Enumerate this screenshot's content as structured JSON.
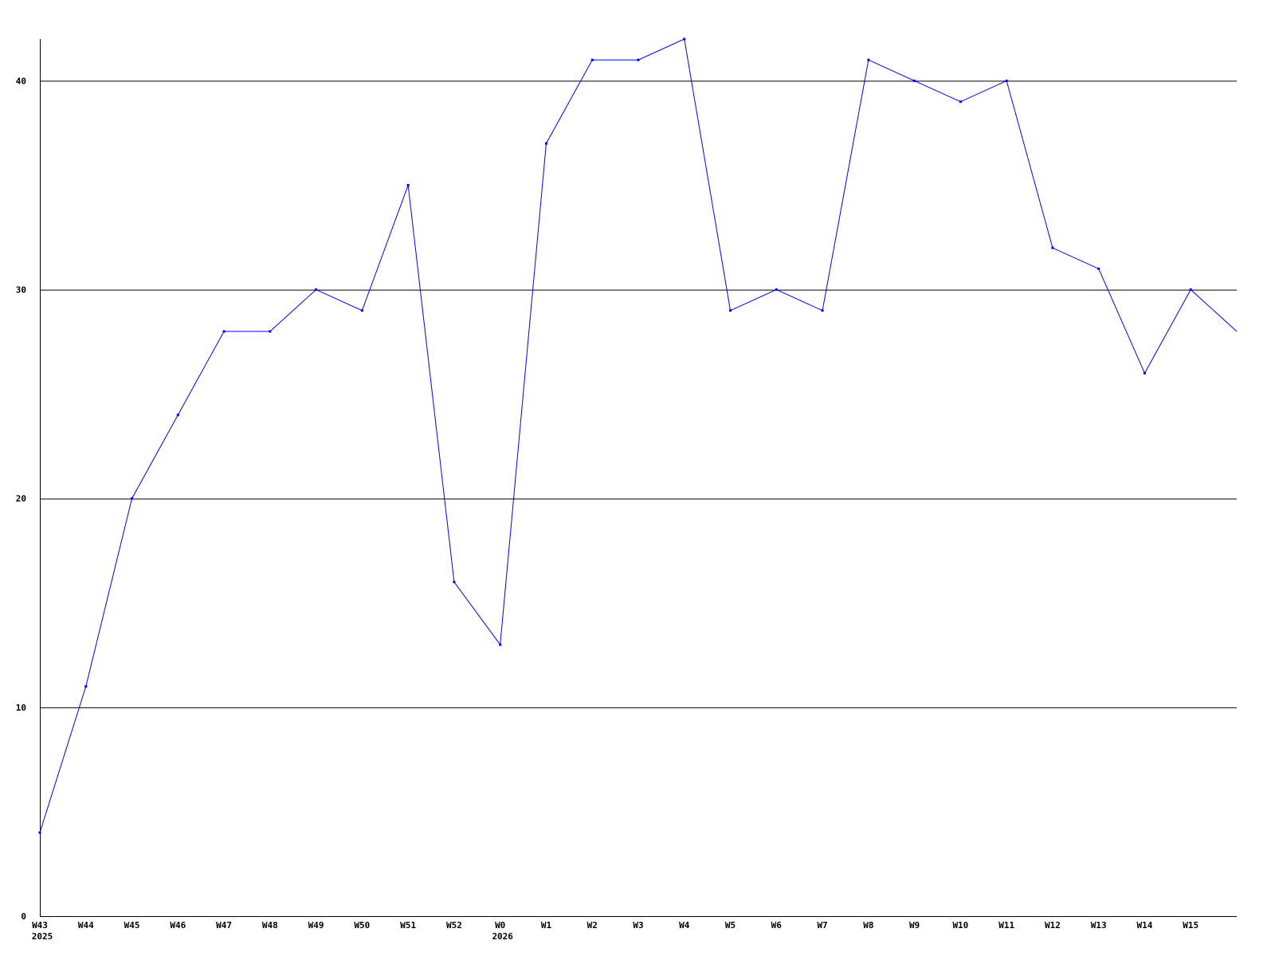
{
  "chart_data": {
    "type": "line",
    "title": "",
    "xlabel": "",
    "ylabel": "",
    "categories": [
      "W43",
      "W44",
      "W45",
      "W46",
      "W47",
      "W48",
      "W49",
      "W50",
      "W51",
      "W52",
      "W0",
      "W1",
      "W2",
      "W3",
      "W4",
      "W5",
      "W6",
      "W7",
      "W8",
      "W9",
      "W10",
      "W11",
      "W12",
      "W13",
      "W14",
      "W15",
      ""
    ],
    "year_labels": [
      {
        "category_index": 0,
        "text": "2025"
      },
      {
        "category_index": 10,
        "text": "2026"
      }
    ],
    "series": [
      {
        "values": [
          4,
          11,
          20,
          24,
          28,
          28,
          30,
          29,
          35,
          16,
          13,
          37,
          41,
          41,
          42,
          29,
          30,
          29,
          41,
          40,
          39,
          40,
          32,
          31,
          26,
          30,
          28
        ],
        "color": "#0000ff"
      }
    ],
    "ylim": [
      0,
      42
    ],
    "yticks": [
      0,
      10,
      20,
      30,
      40
    ],
    "grid": "horizontal",
    "legend": "none",
    "colors": {
      "line": "#0000ff",
      "grid": "#000000",
      "axis": "#000000"
    }
  }
}
